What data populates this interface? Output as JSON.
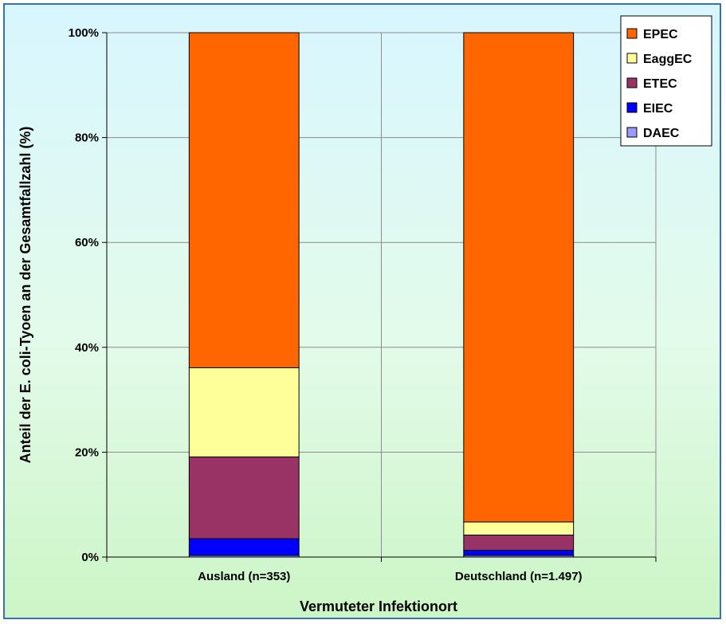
{
  "chart_data": {
    "type": "bar",
    "stacked": true,
    "normalized_percent": true,
    "categories": [
      "Ausland (n=353)",
      "Deutschland (n=1.497)"
    ],
    "series": [
      {
        "name": "DAEC",
        "values": [
          0.3,
          0.3
        ],
        "color": "#9999ff"
      },
      {
        "name": "EIEC",
        "values": [
          3.2,
          1.0
        ],
        "color": "#0000ff"
      },
      {
        "name": "ETEC",
        "values": [
          15.6,
          2.9
        ],
        "color": "#993366"
      },
      {
        "name": "EaggEC",
        "values": [
          17.0,
          2.5
        ],
        "color": "#ffff99"
      },
      {
        "name": "EPEC",
        "values": [
          63.9,
          93.3
        ],
        "color": "#ff6600"
      }
    ],
    "xlabel": "Vermuteter Infektionort",
    "ylabel": "Anteil der E. coli-Tyoen an der Gesamtfallzahl (%)",
    "ylim": [
      0,
      100
    ],
    "yticks": [
      "0%",
      "20%",
      "40%",
      "60%",
      "80%",
      "100%"
    ],
    "grid": "horizontal major lines and vertical category lines",
    "legend": {
      "position": "top-right",
      "entries": [
        "EPEC",
        "EaggEC",
        "ETEC",
        "EIEC",
        "DAEC"
      ]
    }
  }
}
